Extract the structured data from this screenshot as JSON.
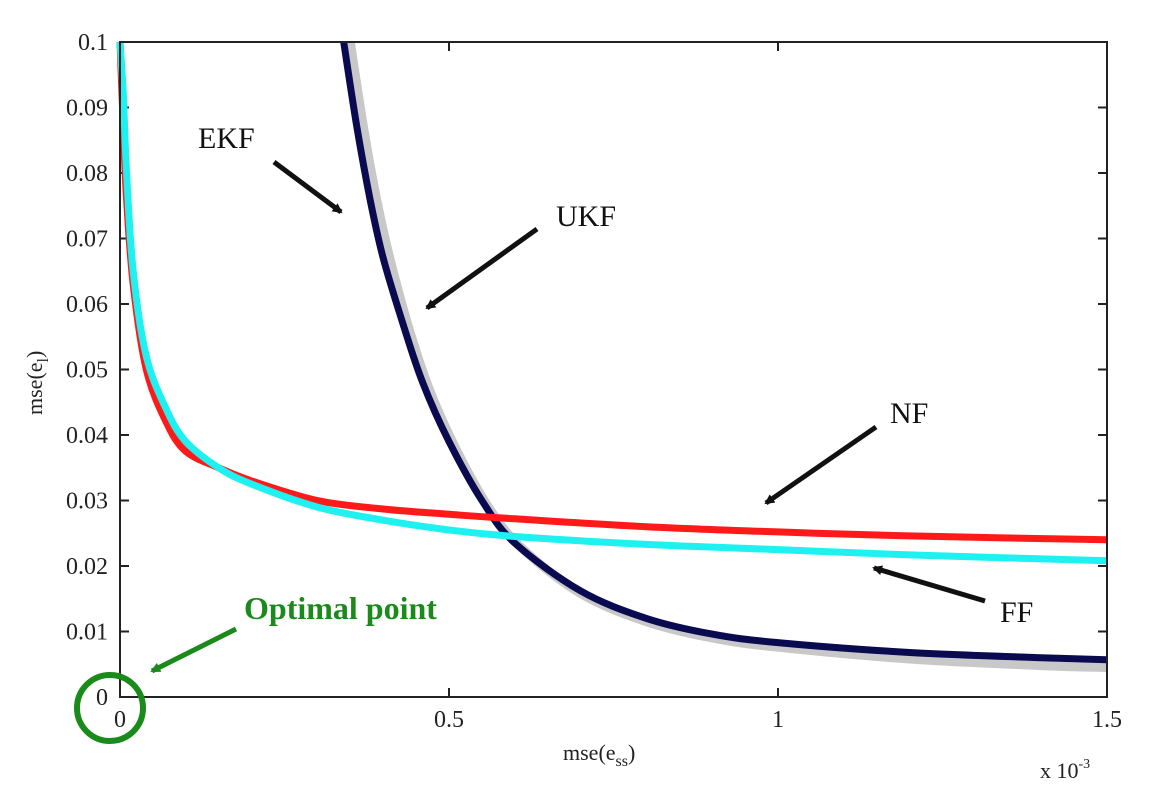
{
  "chart_data": {
    "type": "line",
    "xlabel": "mse(e",
    "xlabel_sub": "ss",
    "xlabel_close": ")",
    "ylabel": "mse(e",
    "ylabel_sub": "l",
    "ylabel_close": ")",
    "x_multiplier": "x 10",
    "x_multiplier_exp": "-3",
    "xlim": [
      0,
      1.5
    ],
    "ylim": [
      0,
      0.1
    ],
    "x_ticks": [
      "0",
      "0.5",
      "1",
      "1.5"
    ],
    "y_ticks": [
      "0",
      "0.01",
      "0.02",
      "0.03",
      "0.04",
      "0.05",
      "0.06",
      "0.07",
      "0.08",
      "0.09",
      "0.1"
    ],
    "grid": false,
    "series": [
      {
        "name": "NF",
        "color": "#ff1a1a",
        "x": [
          0.0,
          0.005,
          0.01,
          0.02,
          0.04,
          0.07,
          0.1,
          0.15,
          0.2,
          0.3,
          0.4,
          0.5,
          0.6,
          0.8,
          1.0,
          1.2,
          1.5
        ],
        "y": [
          0.1,
          0.087,
          0.076,
          0.063,
          0.05,
          0.042,
          0.0375,
          0.035,
          0.033,
          0.03,
          0.0287,
          0.0279,
          0.0272,
          0.026,
          0.0252,
          0.0246,
          0.024
        ]
      },
      {
        "name": "FF",
        "color": "#1ff0f0",
        "x": [
          0.0,
          0.005,
          0.01,
          0.02,
          0.04,
          0.07,
          0.1,
          0.15,
          0.2,
          0.3,
          0.4,
          0.5,
          0.6,
          0.8,
          1.0,
          1.2,
          1.5
        ],
        "y": [
          0.1,
          0.092,
          0.08,
          0.065,
          0.052,
          0.044,
          0.039,
          0.035,
          0.0325,
          0.029,
          0.027,
          0.0255,
          0.0245,
          0.0233,
          0.0225,
          0.0217,
          0.0208
        ]
      },
      {
        "name": "EKF",
        "color": "#0a0a50",
        "x": [
          0.34,
          0.36,
          0.38,
          0.4,
          0.43,
          0.46,
          0.5,
          0.55,
          0.6,
          0.7,
          0.8,
          0.9,
          1.0,
          1.2,
          1.4,
          1.5
        ],
        "y": [
          0.1,
          0.087,
          0.076,
          0.067,
          0.057,
          0.048,
          0.039,
          0.03,
          0.0235,
          0.0162,
          0.012,
          0.0096,
          0.0083,
          0.0068,
          0.006,
          0.0057
        ]
      },
      {
        "name": "UKF",
        "color": "#c8c8c8",
        "x": [
          0.35,
          0.37,
          0.39,
          0.41,
          0.44,
          0.47,
          0.51,
          0.56,
          0.61,
          0.7,
          0.8,
          0.9,
          1.0,
          1.2,
          1.4,
          1.5
        ],
        "y": [
          0.1,
          0.087,
          0.076,
          0.067,
          0.056,
          0.047,
          0.038,
          0.029,
          0.0228,
          0.0158,
          0.0115,
          0.009,
          0.0076,
          0.0058,
          0.0048,
          0.0045
        ]
      }
    ],
    "annotations": [
      {
        "text": "EKF",
        "target_series": "EKF"
      },
      {
        "text": "UKF",
        "target_series": "UKF"
      },
      {
        "text": "NF",
        "target_series": "NF"
      },
      {
        "text": "FF",
        "target_series": "FF"
      },
      {
        "text": "Optimal point",
        "color": "#1a8a1a"
      }
    ]
  }
}
